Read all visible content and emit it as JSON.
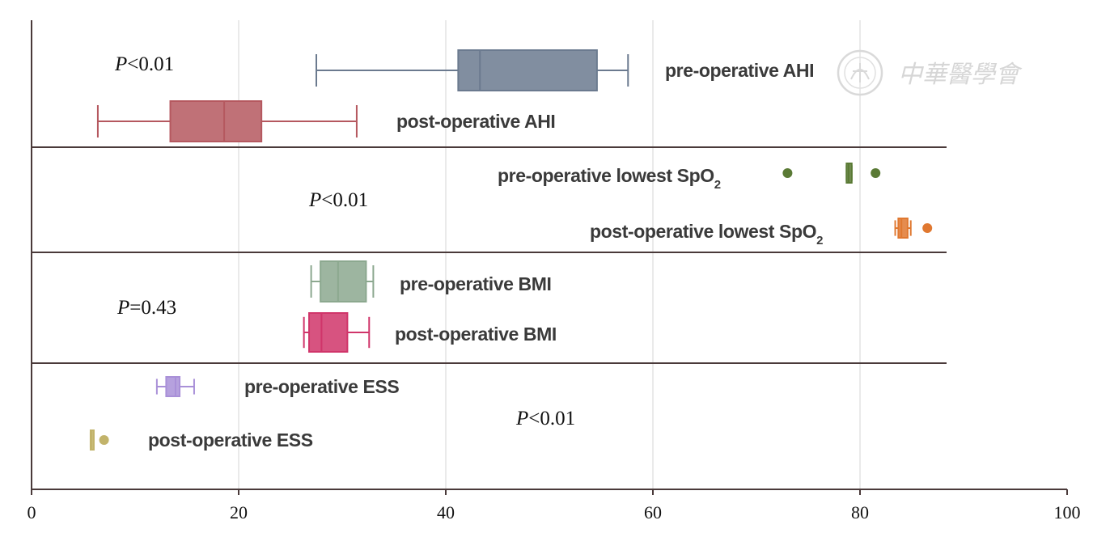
{
  "chart_data": {
    "type": "boxplot",
    "orientation": "horizontal",
    "xlim": [
      0,
      100
    ],
    "x_ticks": [
      0,
      20,
      40,
      60,
      80,
      100
    ],
    "grid": true,
    "groups": [
      {
        "p_text": "<0.01",
        "series": [
          {
            "name_main": "pre-operative AHI",
            "name_sub": "",
            "color": "#6b7a8f",
            "whisker_low": 27.5,
            "q1": 41.2,
            "median": 43.3,
            "q3": 54.6,
            "whisker_high": 57.6,
            "outliers": []
          },
          {
            "name_main": "post-operative AHI",
            "name_sub": "",
            "color": "#b5585f",
            "whisker_low": 6.4,
            "q1": 13.4,
            "median": 18.6,
            "q3": 22.2,
            "whisker_high": 31.4,
            "outliers": []
          }
        ]
      },
      {
        "p_text": "<0.01",
        "series": [
          {
            "name_main": "pre-operative lowest SpO",
            "name_sub": "2",
            "color": "#5a7a35",
            "whisker_low": 78.7,
            "q1": 78.7,
            "median": 78.9,
            "q3": 79.2,
            "whisker_high": 79.2,
            "outliers": [
              73.0,
              81.5
            ]
          },
          {
            "name_main": "post-operative lowest SpO",
            "name_sub": "2",
            "color": "#e07830",
            "whisker_low": 83.4,
            "q1": 83.7,
            "median": 84.0,
            "q3": 84.6,
            "whisker_high": 84.9,
            "outliers": [
              86.5
            ]
          }
        ]
      },
      {
        "p_text": "=0.43",
        "series": [
          {
            "name_main": "pre-operative BMI",
            "name_sub": "",
            "color": "#8ca88f",
            "whisker_low": 27.0,
            "q1": 27.9,
            "median": 29.6,
            "q3": 32.3,
            "whisker_high": 33.0,
            "outliers": []
          },
          {
            "name_main": "post-operative BMI",
            "name_sub": "",
            "color": "#d0356a",
            "whisker_low": 26.3,
            "q1": 26.8,
            "median": 28.0,
            "q3": 30.5,
            "whisker_high": 32.6,
            "outliers": []
          }
        ]
      },
      {
        "p_text": "<0.01",
        "series": [
          {
            "name_main": "pre-operative ESS",
            "name_sub": "",
            "color": "#a990d8",
            "whisker_low": 12.1,
            "q1": 13.0,
            "median": 13.9,
            "q3": 14.3,
            "whisker_high": 15.7,
            "outliers": []
          },
          {
            "name_main": "post-operative ESS",
            "name_sub": "",
            "color": "#c2b36a",
            "whisker_low": 5.7,
            "q1": 5.7,
            "median": 5.8,
            "q3": 5.9,
            "whisker_high": 5.9,
            "outliers": [
              7.0
            ]
          }
        ]
      }
    ],
    "p_letter": "P"
  },
  "watermark": {
    "text": "中華醫學會",
    "color": "#d6d6d6"
  }
}
